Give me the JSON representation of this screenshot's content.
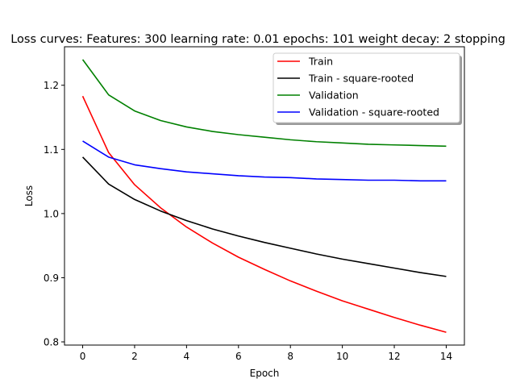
{
  "chart_data": {
    "type": "line",
    "title": "Loss curves: Features: 300 learning rate: 0.01 epochs: 101 weight decay: 2 stopping",
    "xlabel": "Epoch",
    "ylabel": "Loss",
    "xlim": [
      -0.7,
      14.7
    ],
    "ylim": [
      0.795,
      1.26
    ],
    "xticks": [
      0,
      2,
      4,
      6,
      8,
      10,
      12,
      14
    ],
    "yticks": [
      0.8,
      0.9,
      1.0,
      1.1,
      1.2
    ],
    "xtick_labels": [
      "0",
      "2",
      "4",
      "6",
      "8",
      "10",
      "12",
      "14"
    ],
    "ytick_labels": [
      "0.8",
      "0.9",
      "1.0",
      "1.1",
      "1.2"
    ],
    "grid": false,
    "legend_position": "top-right",
    "x": [
      0,
      1,
      2,
      3,
      4,
      5,
      6,
      7,
      8,
      9,
      10,
      11,
      12,
      13,
      14
    ],
    "series": [
      {
        "name": "Train",
        "color": "#ff0000",
        "values": [
          1.183,
          1.095,
          1.045,
          1.009,
          0.979,
          0.954,
          0.932,
          0.913,
          0.895,
          0.879,
          0.864,
          0.851,
          0.838,
          0.826,
          0.815
        ]
      },
      {
        "name": "Train - square-rooted",
        "color": "#000000",
        "values": [
          1.088,
          1.046,
          1.022,
          1.004,
          0.989,
          0.976,
          0.965,
          0.955,
          0.946,
          0.937,
          0.929,
          0.922,
          0.915,
          0.908,
          0.902
        ]
      },
      {
        "name": "Validation",
        "color": "#008000",
        "values": [
          1.24,
          1.185,
          1.16,
          1.145,
          1.135,
          1.128,
          1.123,
          1.119,
          1.115,
          1.112,
          1.11,
          1.108,
          1.107,
          1.106,
          1.105
        ]
      },
      {
        "name": "Validation - square-rooted",
        "color": "#0000ff",
        "values": [
          1.113,
          1.088,
          1.076,
          1.07,
          1.065,
          1.062,
          1.059,
          1.057,
          1.056,
          1.054,
          1.053,
          1.052,
          1.052,
          1.051,
          1.051
        ]
      }
    ]
  }
}
